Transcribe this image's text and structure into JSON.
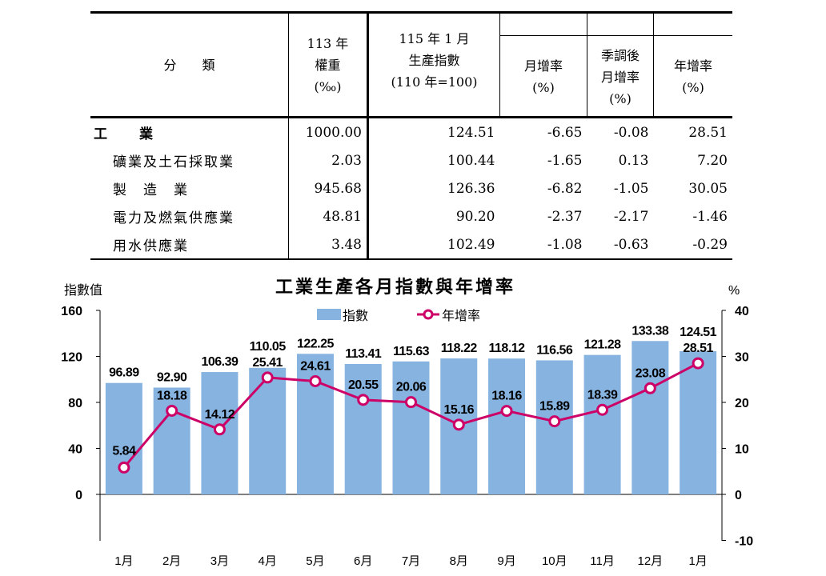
{
  "table": {
    "headers": {
      "category": "分　　類",
      "weight": [
        "113 年",
        "權重",
        "(‰)"
      ],
      "index": [
        "115 年 1 月",
        "生產指數",
        "(110 年=100)"
      ],
      "mom": [
        "月增率",
        "(%)"
      ],
      "sa_mom": [
        "季調後",
        "月增率",
        "(%)"
      ],
      "yoy": [
        "年增率",
        "(%)"
      ]
    },
    "rows": [
      {
        "name": "工　　業",
        "weight": "1000.00",
        "index": "124.51",
        "mom": "-6.65",
        "sa_mom": "-0.08",
        "yoy": "28.51"
      },
      {
        "name": "礦業及土石採取業",
        "weight": "2.03",
        "index": "100.44",
        "mom": "-1.65",
        "sa_mom": "0.13",
        "yoy": "7.20"
      },
      {
        "name": "製　造　業",
        "weight": "945.68",
        "index": "126.36",
        "mom": "-6.82",
        "sa_mom": "-1.05",
        "yoy": "30.05"
      },
      {
        "name": "電力及燃氣供應業",
        "weight": "48.81",
        "index": "90.20",
        "mom": "-2.37",
        "sa_mom": "-2.17",
        "yoy": "-1.46"
      },
      {
        "name": "用水供應業",
        "weight": "3.48",
        "index": "102.49",
        "mom": "-1.08",
        "sa_mom": "-0.63",
        "yoy": "-0.29"
      }
    ]
  },
  "chart_data": {
    "type": "bar+line",
    "title": "工業生產各月指數與年增率",
    "ylabel": "指數值",
    "y2label": "%",
    "ylim": [
      0,
      160
    ],
    "y2lim": [
      -10,
      40
    ],
    "yticks": [
      0,
      40,
      80,
      120,
      160
    ],
    "y2ticks": [
      -10,
      0,
      10,
      20,
      30,
      40
    ],
    "legend_position": "top-center",
    "categories": [
      "1月",
      "2月",
      "3月",
      "4月",
      "5月",
      "6月",
      "7月",
      "8月",
      "9月",
      "10月",
      "11月",
      "12月",
      "1月"
    ],
    "series": [
      {
        "name": "指數",
        "type": "bar",
        "axis": "left",
        "color": "#86b3e0",
        "values": [
          96.89,
          92.9,
          106.39,
          110.05,
          122.25,
          113.41,
          115.63,
          118.22,
          118.12,
          116.56,
          121.28,
          133.38,
          124.51
        ]
      },
      {
        "name": "年增率",
        "type": "line",
        "axis": "right",
        "color": "#cc0066",
        "values": [
          5.84,
          18.18,
          14.12,
          25.41,
          24.61,
          20.55,
          20.06,
          15.16,
          18.16,
          15.89,
          18.39,
          23.08,
          28.51
        ]
      }
    ]
  }
}
